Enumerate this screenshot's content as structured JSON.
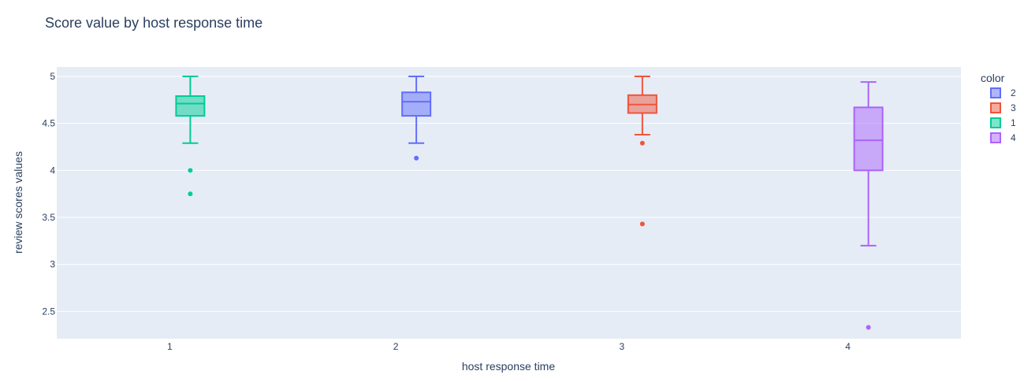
{
  "chart_data": {
    "type": "box",
    "title": "Score value by host response time",
    "xlabel": "host response time",
    "ylabel": "review scores values",
    "x_ticks": [
      "1",
      "2",
      "3",
      "4"
    ],
    "y_ticks": [
      "2.5",
      "3",
      "3.5",
      "4",
      "4.5",
      "5"
    ],
    "xlim": [
      0.5,
      4.5
    ],
    "ylim": [
      2.21,
      5.1
    ],
    "grid": true,
    "legend": {
      "title": "color",
      "placement": "right"
    },
    "series": [
      {
        "name": "2",
        "color": "#636efa",
        "x": 2,
        "lowerfence": 4.29,
        "q1": 4.58,
        "median": 4.73,
        "q3": 4.83,
        "upperfence": 5.0,
        "outliers": [
          4.13
        ]
      },
      {
        "name": "3",
        "color": "#ef553b",
        "x": 3,
        "lowerfence": 4.38,
        "q1": 4.61,
        "median": 4.7,
        "q3": 4.8,
        "upperfence": 5.0,
        "outliers": [
          4.29,
          3.43
        ]
      },
      {
        "name": "1",
        "color": "#00cc96",
        "x": 1,
        "lowerfence": 4.29,
        "q1": 4.58,
        "median": 4.71,
        "q3": 4.79,
        "upperfence": 5.0,
        "outliers": [
          4.0,
          3.75
        ]
      },
      {
        "name": "4",
        "color": "#ab63fa",
        "x": 4,
        "lowerfence": 3.2,
        "q1": 4.0,
        "median": 4.32,
        "q3": 4.67,
        "upperfence": 4.94,
        "outliers": [
          2.33
        ]
      }
    ]
  }
}
